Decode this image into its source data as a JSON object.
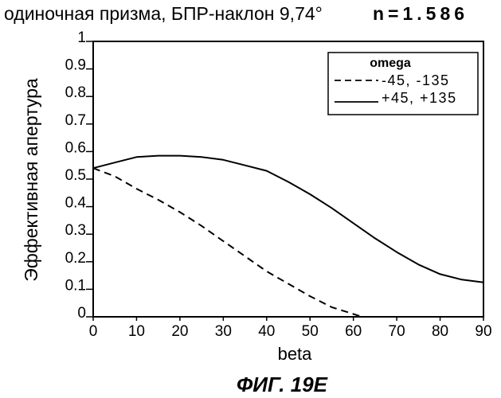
{
  "chart_data": {
    "type": "line",
    "title": "одиночная призма, БПР-наклон 9,74°",
    "title_param": "n=1.586",
    "xlabel": "beta",
    "ylabel": "Эффективная апертура",
    "xlim": [
      0,
      90
    ],
    "ylim": [
      0,
      1
    ],
    "xticks": [
      0,
      10,
      20,
      30,
      40,
      50,
      60,
      70,
      80,
      90
    ],
    "xtick_labels": [
      "0",
      "10",
      "20",
      "30",
      "40",
      "50",
      "60",
      "70",
      "80",
      "90"
    ],
    "yticks": [
      0,
      0.1,
      0.2,
      0.3,
      0.4,
      0.5,
      0.6,
      0.7,
      0.8,
      0.9,
      1
    ],
    "ytick_labels": [
      "0",
      "0.1",
      "0.2",
      "0.3",
      "0.4",
      "0.5",
      "0.6",
      "0.7",
      "0.8",
      "0.9",
      "1"
    ],
    "grid": false,
    "legend": {
      "title": "omega",
      "placement": "top-right"
    },
    "series": [
      {
        "name": "-45, -135",
        "style": "dashed",
        "x": [
          0,
          5,
          10,
          15,
          20,
          25,
          30,
          35,
          40,
          45,
          50,
          55,
          60,
          62
        ],
        "y": [
          0.54,
          0.51,
          0.465,
          0.425,
          0.38,
          0.33,
          0.275,
          0.22,
          0.165,
          0.12,
          0.075,
          0.035,
          0.01,
          0.0
        ]
      },
      {
        "name": "+45, +135",
        "style": "solid",
        "x": [
          0,
          5,
          10,
          15,
          20,
          25,
          30,
          35,
          40,
          45,
          50,
          55,
          60,
          65,
          70,
          75,
          80,
          85,
          90
        ],
        "y": [
          0.54,
          0.56,
          0.58,
          0.585,
          0.585,
          0.58,
          0.57,
          0.55,
          0.53,
          0.49,
          0.445,
          0.395,
          0.34,
          0.285,
          0.235,
          0.19,
          0.155,
          0.135,
          0.125
        ]
      }
    ]
  },
  "caption": "ФИГ. 19E",
  "colors": {
    "ink": "#000000",
    "background": "#ffffff"
  }
}
